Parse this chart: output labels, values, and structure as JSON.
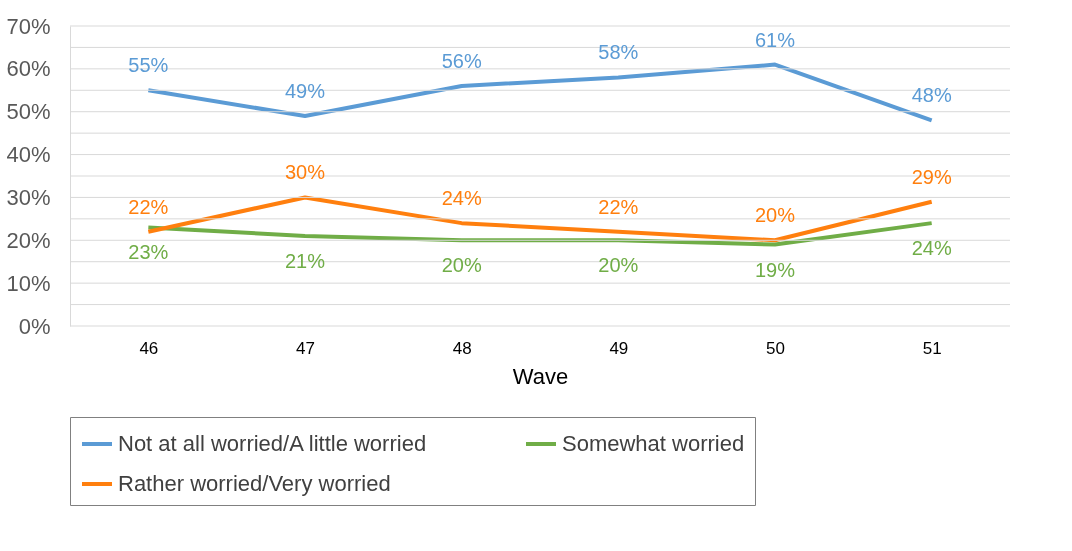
{
  "chart_data": {
    "type": "line",
    "xlabel": "Wave",
    "categories": [
      "46",
      "47",
      "48",
      "49",
      "50",
      "51"
    ],
    "series": [
      {
        "name": "Not at all worried/A little worried",
        "color": "#5b9bd5",
        "values": [
          55,
          49,
          56,
          58,
          61,
          48
        ],
        "value_labels": [
          "55%",
          "49%",
          "56%",
          "58%",
          "61%",
          "48%"
        ]
      },
      {
        "name": "Somewhat worried",
        "color": "#70ad47",
        "values": [
          23,
          21,
          20,
          20,
          19,
          24
        ],
        "value_labels": [
          "23%",
          "21%",
          "20%",
          "20%",
          "19%",
          "24%"
        ]
      },
      {
        "name": "Rather worried/Very worried",
        "color": "#ff7f0e",
        "values": [
          22,
          30,
          24,
          22,
          20,
          29
        ],
        "value_labels": [
          "22%",
          "30%",
          "24%",
          "22%",
          "20%",
          "29%"
        ]
      }
    ],
    "ylim": [
      0,
      70
    ],
    "yticks": [
      {
        "value": 0,
        "label": "0%"
      },
      {
        "value": 5,
        "label": null
      },
      {
        "value": 10,
        "label": "10%"
      },
      {
        "value": 15,
        "label": null
      },
      {
        "value": 20,
        "label": "20%"
      },
      {
        "value": 25,
        "label": null
      },
      {
        "value": 30,
        "label": "30%"
      },
      {
        "value": 35,
        "label": null
      },
      {
        "value": 40,
        "label": "40%"
      },
      {
        "value": 45,
        "label": null
      },
      {
        "value": 50,
        "label": "50%"
      },
      {
        "value": 55,
        "label": null
      },
      {
        "value": 60,
        "label": "60%"
      },
      {
        "value": 65,
        "label": null
      },
      {
        "value": 70,
        "label": "70%"
      }
    ],
    "grid": "y",
    "legend": "bottom",
    "marker": "none",
    "line_style": "solid"
  }
}
